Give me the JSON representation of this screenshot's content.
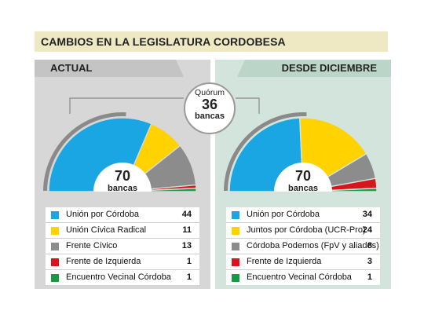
{
  "title": "CAMBIOS EN LA LEGISLATURA CORDOBESA",
  "quorum": {
    "label": "Quórum",
    "value": "36",
    "unit": "bancas"
  },
  "chart_data": [
    {
      "type": "pie",
      "tab": "ACTUAL",
      "total_value": "70",
      "total_unit": "bancas",
      "background": "#d7d7d7",
      "slices": [
        {
          "label": "Unión por Córdoba",
          "value": 44,
          "color": "#1aa6e2"
        },
        {
          "label": "Unión Cívica Radical",
          "value": 11,
          "color": "#ffd200"
        },
        {
          "label": "Frente Cívico",
          "value": 13,
          "color": "#8c8c8c"
        },
        {
          "label": "Frente de Izquierda",
          "value": 1,
          "color": "#d7151c"
        },
        {
          "label": "Encuentro Vecinal Córdoba",
          "value": 1,
          "color": "#179a41"
        }
      ]
    },
    {
      "type": "pie",
      "tab": "DESDE DICIEMBRE",
      "total_value": "70",
      "total_unit": "bancas",
      "background": "#d3e4dc",
      "slices": [
        {
          "label": "Unión por Córdoba",
          "value": 34,
          "color": "#1aa6e2"
        },
        {
          "label": "Juntos por Córdoba (UCR-Pro)",
          "value": 24,
          "color": "#ffd200"
        },
        {
          "label": "Córdoba Podemos (FpV y aliados)",
          "value": 8,
          "color": "#8c8c8c"
        },
        {
          "label": "Frente de Izquierda",
          "value": 3,
          "color": "#d7151c"
        },
        {
          "label": "Encuentro Vecinal Córdoba",
          "value": 1,
          "color": "#179a41"
        }
      ]
    }
  ]
}
